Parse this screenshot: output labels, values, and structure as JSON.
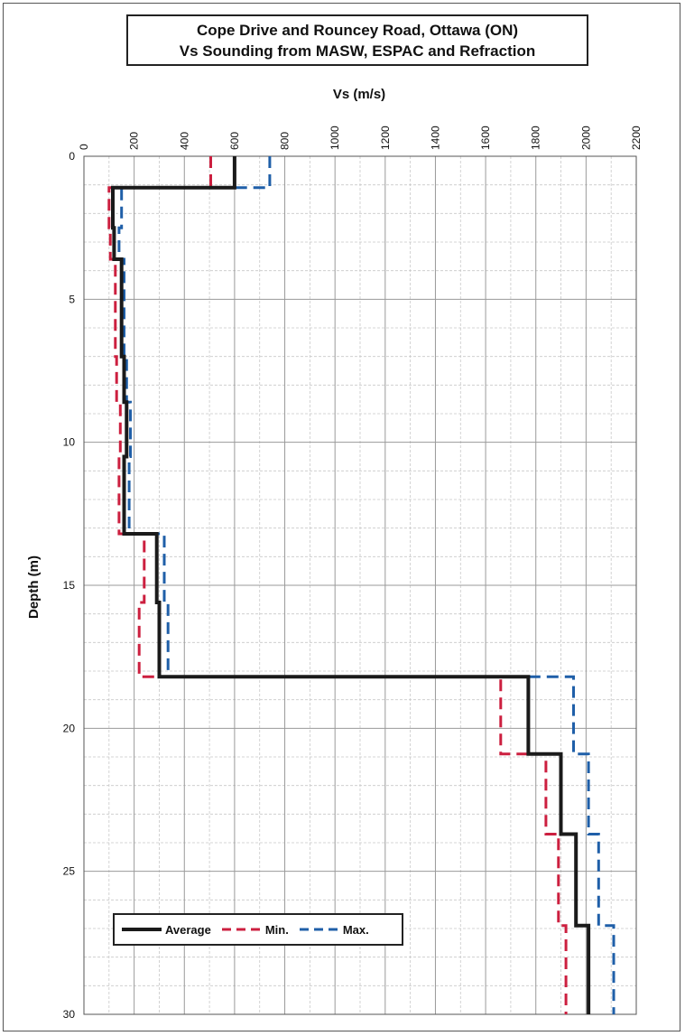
{
  "title_line1": "Cope Drive and Rouncey Road, Ottawa (ON)",
  "title_line2": "Vs Sounding  from MASW, ESPAC and Refraction",
  "chart_data": {
    "type": "line",
    "xlabel": "Vs (m/s)",
    "ylabel": "Depth (m)",
    "xlim": [
      0,
      2200
    ],
    "ylim": [
      30,
      0
    ],
    "x_axis_position": "top",
    "x_ticks": [
      0,
      200,
      400,
      600,
      800,
      1000,
      1200,
      1400,
      1600,
      1800,
      2000,
      2200
    ],
    "y_ticks": [
      0,
      5,
      10,
      15,
      20,
      25,
      30
    ],
    "grid": true,
    "legend_placement": "bottom-left",
    "series": [
      {
        "name": "Average",
        "color": "#1a1a1a",
        "style": "solid",
        "points": [
          [
            600,
            0
          ],
          [
            600,
            1.1
          ],
          [
            115,
            1.1
          ],
          [
            115,
            2.5
          ],
          [
            120,
            2.5
          ],
          [
            120,
            3.6
          ],
          [
            150,
            3.6
          ],
          [
            150,
            7.0
          ],
          [
            160,
            7.0
          ],
          [
            160,
            8.6
          ],
          [
            170,
            8.6
          ],
          [
            170,
            10.5
          ],
          [
            160,
            10.5
          ],
          [
            160,
            13.2
          ],
          [
            290,
            13.2
          ],
          [
            290,
            15.6
          ],
          [
            300,
            15.6
          ],
          [
            300,
            18.2
          ],
          [
            1770,
            18.2
          ],
          [
            1770,
            20.9
          ],
          [
            1900,
            20.9
          ],
          [
            1900,
            23.7
          ],
          [
            1960,
            23.7
          ],
          [
            1960,
            26.9
          ],
          [
            2010,
            26.9
          ],
          [
            2010,
            30
          ]
        ]
      },
      {
        "name": "Min.",
        "color": "#cc1f3f",
        "style": "dashed",
        "points": [
          [
            505,
            0
          ],
          [
            505,
            1.1
          ],
          [
            100,
            1.1
          ],
          [
            100,
            2.5
          ],
          [
            105,
            2.5
          ],
          [
            105,
            3.6
          ],
          [
            125,
            3.6
          ],
          [
            125,
            7.0
          ],
          [
            130,
            7.0
          ],
          [
            130,
            8.6
          ],
          [
            145,
            8.6
          ],
          [
            145,
            10.5
          ],
          [
            140,
            10.5
          ],
          [
            140,
            13.2
          ],
          [
            240,
            13.2
          ],
          [
            240,
            15.6
          ],
          [
            220,
            15.6
          ],
          [
            220,
            18.2
          ],
          [
            1660,
            18.2
          ],
          [
            1660,
            20.9
          ],
          [
            1840,
            20.9
          ],
          [
            1840,
            23.7
          ],
          [
            1890,
            23.7
          ],
          [
            1890,
            26.9
          ],
          [
            1920,
            26.9
          ],
          [
            1920,
            30
          ]
        ]
      },
      {
        "name": "Max.",
        "color": "#1f5fa8",
        "style": "dashed",
        "points": [
          [
            740,
            0
          ],
          [
            740,
            1.1
          ],
          [
            150,
            1.1
          ],
          [
            150,
            2.5
          ],
          [
            140,
            2.5
          ],
          [
            140,
            3.6
          ],
          [
            160,
            3.6
          ],
          [
            160,
            7.0
          ],
          [
            170,
            7.0
          ],
          [
            170,
            8.6
          ],
          [
            185,
            8.6
          ],
          [
            185,
            10.5
          ],
          [
            180,
            10.5
          ],
          [
            180,
            13.2
          ],
          [
            320,
            13.2
          ],
          [
            320,
            15.6
          ],
          [
            335,
            15.6
          ],
          [
            335,
            18.2
          ],
          [
            1950,
            18.2
          ],
          [
            1950,
            20.9
          ],
          [
            2010,
            20.9
          ],
          [
            2010,
            23.7
          ],
          [
            2050,
            23.7
          ],
          [
            2050,
            26.9
          ],
          [
            2110,
            26.9
          ],
          [
            2110,
            30
          ]
        ]
      }
    ]
  }
}
